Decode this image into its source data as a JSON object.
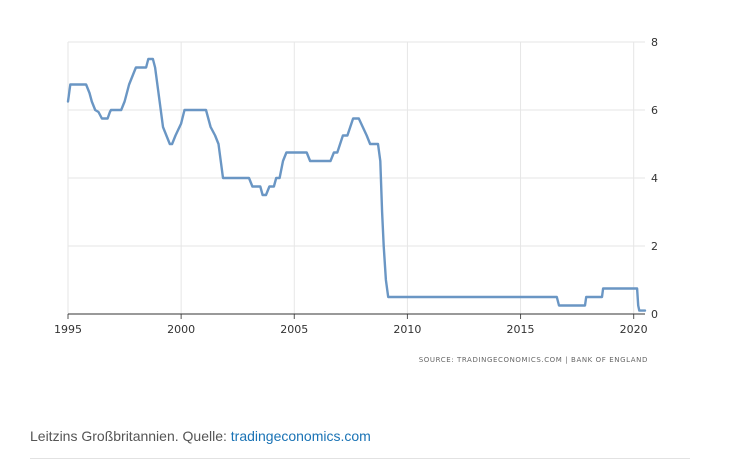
{
  "chart_data": {
    "type": "line",
    "xlim": [
      1995,
      2020.5
    ],
    "ylim": [
      0,
      8
    ],
    "x_ticks": [
      "1995",
      "2000",
      "2005",
      "2010",
      "2015",
      "2020"
    ],
    "y_ticks": [
      "0",
      "2",
      "4",
      "6",
      "8"
    ],
    "grid": true,
    "y_axis_position": "right",
    "line_color": "#6a96c4",
    "series": [
      {
        "points": [
          [
            1995.0,
            6.25
          ],
          [
            1995.1,
            6.75
          ],
          [
            1995.8,
            6.75
          ],
          [
            1995.95,
            6.5
          ],
          [
            1996.05,
            6.25
          ],
          [
            1996.2,
            6.0
          ],
          [
            1996.35,
            5.94
          ],
          [
            1996.5,
            5.75
          ],
          [
            1996.75,
            5.75
          ],
          [
            1996.85,
            5.94
          ],
          [
            1996.9,
            6.0
          ],
          [
            1997.35,
            6.0
          ],
          [
            1997.5,
            6.25
          ],
          [
            1997.7,
            6.75
          ],
          [
            1997.85,
            7.0
          ],
          [
            1998.0,
            7.25
          ],
          [
            1998.3,
            7.25
          ],
          [
            1998.45,
            7.25
          ],
          [
            1998.55,
            7.5
          ],
          [
            1998.75,
            7.5
          ],
          [
            1998.85,
            7.25
          ],
          [
            1999.0,
            6.5
          ],
          [
            1999.2,
            5.5
          ],
          [
            1999.5,
            5.0
          ],
          [
            1999.6,
            5.0
          ],
          [
            1999.75,
            5.25
          ],
          [
            2000.0,
            5.6
          ],
          [
            2000.15,
            6.0
          ],
          [
            2001.1,
            6.0
          ],
          [
            2001.3,
            5.5
          ],
          [
            2001.5,
            5.25
          ],
          [
            2001.65,
            5.0
          ],
          [
            2001.85,
            4.0
          ],
          [
            2003.0,
            4.0
          ],
          [
            2003.15,
            3.75
          ],
          [
            2003.5,
            3.75
          ],
          [
            2003.6,
            3.5
          ],
          [
            2003.75,
            3.5
          ],
          [
            2003.9,
            3.75
          ],
          [
            2004.1,
            3.75
          ],
          [
            2004.2,
            4.0
          ],
          [
            2004.35,
            4.0
          ],
          [
            2004.5,
            4.5
          ],
          [
            2004.65,
            4.75
          ],
          [
            2005.55,
            4.75
          ],
          [
            2005.7,
            4.5
          ],
          [
            2006.6,
            4.5
          ],
          [
            2006.75,
            4.75
          ],
          [
            2006.9,
            4.75
          ],
          [
            2007.15,
            5.25
          ],
          [
            2007.35,
            5.25
          ],
          [
            2007.6,
            5.75
          ],
          [
            2007.85,
            5.75
          ],
          [
            2008.2,
            5.25
          ],
          [
            2008.35,
            5.0
          ],
          [
            2008.7,
            5.0
          ],
          [
            2008.8,
            4.5
          ],
          [
            2008.88,
            3.0
          ],
          [
            2008.95,
            2.0
          ],
          [
            2009.05,
            1.0
          ],
          [
            2009.15,
            0.5
          ],
          [
            2016.6,
            0.5
          ],
          [
            2016.7,
            0.25
          ],
          [
            2017.85,
            0.25
          ],
          [
            2017.9,
            0.5
          ],
          [
            2018.6,
            0.5
          ],
          [
            2018.65,
            0.75
          ],
          [
            2020.15,
            0.75
          ],
          [
            2020.2,
            0.25
          ],
          [
            2020.25,
            0.1
          ],
          [
            2020.5,
            0.1
          ]
        ]
      }
    ]
  },
  "source": {
    "text": "SOURCE: TRADINGECONOMICS.COM | BANK OF ENGLAND"
  },
  "caption": {
    "text": "Leitzins Großbritannien. Quelle: ",
    "link": "tradingeconomics.com"
  }
}
